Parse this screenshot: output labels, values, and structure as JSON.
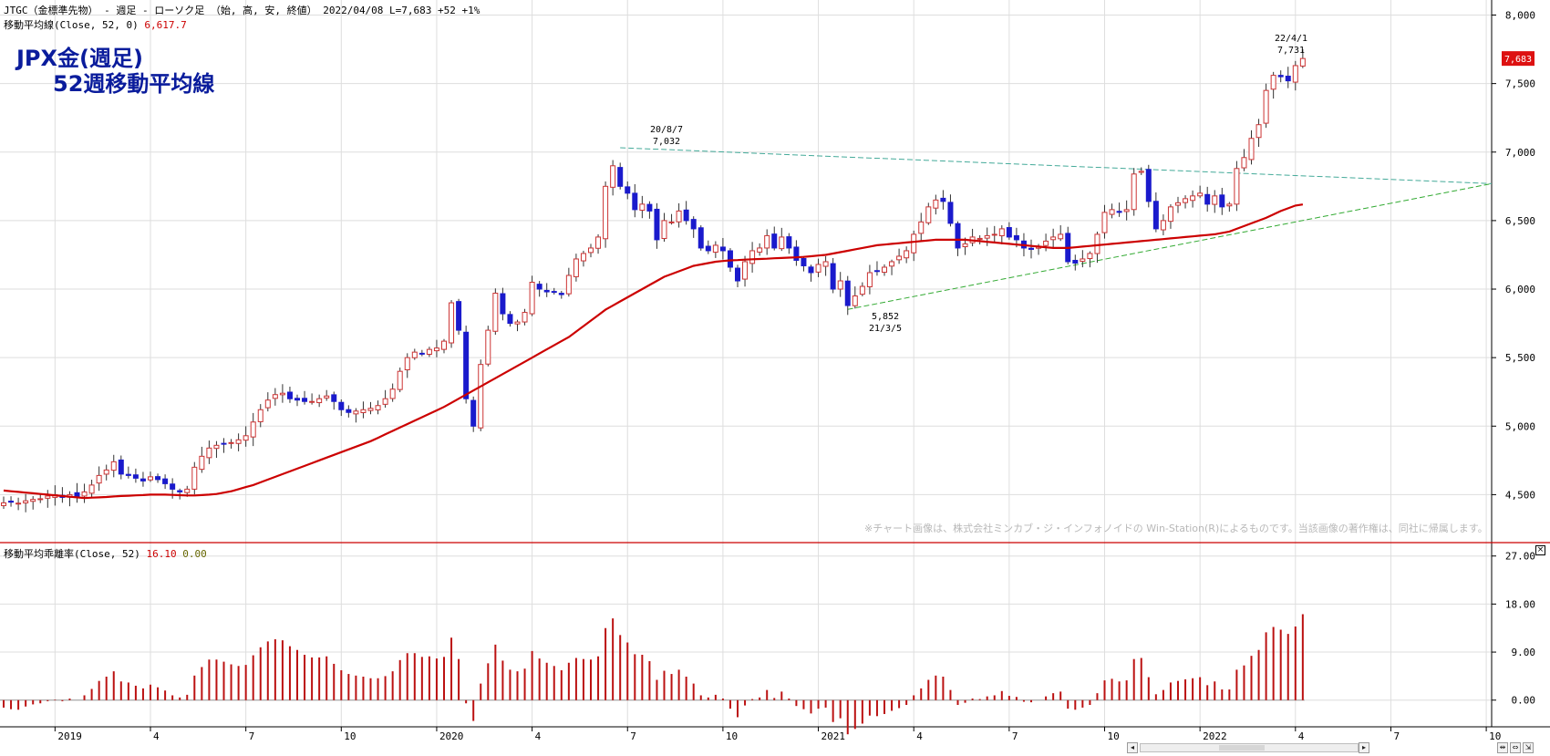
{
  "header": {
    "line1": "JTGC（金標準先物） - 週足 - ローソク足 （始, 高, 安, 終値） 2022/04/08 L=7,683 +52 +1%",
    "line2_prefix": "移動平均線(Close, 52, 0)",
    "line2_value": "6,617.7",
    "sub_prefix": "移動平均乖離率(Close, 52)",
    "sub_value1": "16.10",
    "sub_value2": "0.00"
  },
  "title": {
    "line1": "JPX金(週足)",
    "line2": "52週移動平均線"
  },
  "copyright": "※チャート画像は、株式会社ミンカブ・ジ・インフォノイドの Win-Station(R)によるものです。当該画像の著作権は、同社に帰属します。",
  "annotations": {
    "high1_date": "20/8/7",
    "high1_value": "7,032",
    "low_value": "5,852",
    "low_date": "21/3/5",
    "high2_date": "22/4/1",
    "high2_value": "7,731"
  },
  "colors": {
    "up_candle": "#cc3333",
    "down_candle": "#1a1acc",
    "ma_line": "#cc0000",
    "deviation_bar": "#bb1111",
    "grid": "#dedede",
    "trend_upper": "#44aa99",
    "trend_lower": "#33aa33",
    "last_price_tag": "#dd1111"
  },
  "chart_data": [
    {
      "type": "candlestick",
      "title": "JPX金(週足) 52週移動平均線",
      "y_ticks": [
        "8,000",
        "7,500",
        "7,000",
        "6,500",
        "6,000",
        "5,500",
        "5,000",
        "4,500"
      ],
      "ylim": [
        4150,
        8030
      ],
      "x_ticks": [
        "2019",
        "4",
        "7",
        "10",
        "2020",
        "4",
        "7",
        "10",
        "2021",
        "4",
        "7",
        "10",
        "2022",
        "4",
        "7",
        "10"
      ],
      "x_tick_weeks": [
        7,
        20,
        33,
        46,
        59,
        72,
        85,
        98,
        111,
        124,
        137,
        150,
        163,
        176,
        189,
        202
      ],
      "total_weeks": 203,
      "last_price_label": "7,683",
      "close": [
        4440,
        4445,
        4438,
        4455,
        4465,
        4470,
        4490,
        4500,
        4480,
        4500,
        4480,
        4520,
        4570,
        4640,
        4680,
        4740,
        4650,
        4640,
        4620,
        4600,
        4630,
        4610,
        4580,
        4540,
        4520,
        4540,
        4700,
        4780,
        4840,
        4860,
        4870,
        4880,
        4900,
        4930,
        5030,
        5120,
        5190,
        5230,
        5240,
        5200,
        5190,
        5180,
        5180,
        5200,
        5220,
        5180,
        5120,
        5100,
        5110,
        5120,
        5130,
        5150,
        5200,
        5270,
        5400,
        5500,
        5540,
        5530,
        5560,
        5570,
        5620,
        5900,
        5700,
        5200,
        5000,
        5450,
        5700,
        5970,
        5820,
        5750,
        5760,
        5830,
        6050,
        6000,
        5980,
        5980,
        5960,
        6100,
        6220,
        6260,
        6300,
        6380,
        6750,
        6900,
        6750,
        6700,
        6580,
        6620,
        6570,
        6360,
        6500,
        6490,
        6570,
        6500,
        6440,
        6300,
        6280,
        6320,
        6280,
        6160,
        6060,
        6200,
        6280,
        6300,
        6390,
        6300,
        6380,
        6300,
        6210,
        6170,
        6120,
        6180,
        6200,
        6000,
        6060,
        5880,
        5950,
        6020,
        6120,
        6130,
        6160,
        6200,
        6240,
        6280,
        6400,
        6490,
        6600,
        6650,
        6640,
        6480,
        6300,
        6330,
        6380,
        6370,
        6390,
        6400,
        6440,
        6380,
        6360,
        6300,
        6290,
        6310,
        6350,
        6380,
        6400,
        6200,
        6190,
        6220,
        6260,
        6400,
        6560,
        6580,
        6560,
        6580,
        6840,
        6860,
        6640,
        6440,
        6500,
        6600,
        6630,
        6660,
        6680,
        6700,
        6620,
        6680,
        6600,
        6620,
        6880,
        6960,
        7100,
        7200,
        7450,
        7560,
        7550,
        7520,
        7631,
        7683
      ],
      "moving_average": [
        4530,
        4525,
        4520,
        4515,
        4510,
        4505,
        4500,
        4495,
        4490,
        4485,
        4480,
        4475,
        4478,
        4480,
        4483,
        4487,
        4490,
        4492,
        4495,
        4497,
        4500,
        4500,
        4500,
        4498,
        4496,
        4494,
        4494,
        4497,
        4500,
        4505,
        4515,
        4525,
        4540,
        4555,
        4570,
        4590,
        4610,
        4630,
        4650,
        4670,
        4690,
        4710,
        4730,
        4750,
        4770,
        4790,
        4810,
        4830,
        4850,
        4870,
        4890,
        4915,
        4940,
        4965,
        4990,
        5015,
        5040,
        5065,
        5090,
        5115,
        5140,
        5170,
        5200,
        5230,
        5260,
        5290,
        5320,
        5350,
        5380,
        5410,
        5440,
        5470,
        5500,
        5530,
        5560,
        5590,
        5620,
        5650,
        5690,
        5730,
        5770,
        5810,
        5850,
        5880,
        5910,
        5940,
        5970,
        6000,
        6030,
        6060,
        6090,
        6110,
        6130,
        6150,
        6170,
        6180,
        6190,
        6200,
        6205,
        6210,
        6212,
        6215,
        6218,
        6220,
        6222,
        6225,
        6227,
        6230,
        6232,
        6235,
        6240,
        6245,
        6250,
        6260,
        6270,
        6280,
        6290,
        6300,
        6310,
        6320,
        6325,
        6330,
        6335,
        6340,
        6345,
        6350,
        6355,
        6360,
        6360,
        6360,
        6360,
        6360,
        6355,
        6350,
        6345,
        6340,
        6335,
        6330,
        6325,
        6320,
        6315,
        6310,
        6305,
        6300,
        6300,
        6300,
        6305,
        6310,
        6315,
        6320,
        6325,
        6330,
        6335,
        6340,
        6345,
        6350,
        6355,
        6360,
        6365,
        6370,
        6375,
        6380,
        6385,
        6390,
        6395,
        6400,
        6410,
        6420,
        6440,
        6460,
        6480,
        6500,
        6520,
        6545,
        6570,
        6590,
        6610,
        6618
      ]
    },
    {
      "type": "bar",
      "title": "移動平均乖離率(Close, 52)",
      "y_ticks": [
        "27.00",
        "18.00",
        "9.00",
        "0.00"
      ],
      "ylim": [
        -5,
        29
      ],
      "values": [
        -1.4,
        -1.7,
        -1.8,
        -1.2,
        -0.8,
        -0.6,
        -0.2,
        0.1,
        -0.2,
        0.3,
        0,
        0.9,
        2.1,
        3.6,
        4.4,
        5.4,
        3.5,
        3.3,
        2.7,
        2.2,
        2.9,
        2.4,
        1.8,
        0.9,
        0.5,
        1,
        4.6,
        6.2,
        7.6,
        7.6,
        7.2,
        6.7,
        6.4,
        6.6,
        8.4,
        9.9,
        11,
        11.4,
        11.2,
        10.1,
        9.4,
        8.5,
        8,
        8,
        8.2,
        6.8,
        5.6,
        4.9,
        4.6,
        4.4,
        4.1,
        4.1,
        4.5,
        5.4,
        7.5,
        8.8,
        8.8,
        8.1,
        8.2,
        7.8,
        8.1,
        11.7,
        7.7,
        -0.6,
        -3.9,
        3.1,
        6.9,
        10.4,
        7.4,
        5.7,
        5.4,
        5.9,
        9.2,
        7.8,
        7,
        6.4,
        5.6,
        7,
        7.9,
        7.7,
        7.6,
        8.2,
        13.5,
        15.3,
        12.2,
        10.8,
        8.6,
        8.5,
        7.3,
        3.8,
        5.5,
        4.9,
        5.7,
        4.4,
        3.1,
        0.9,
        0.5,
        1,
        0.3,
        -1.6,
        -3.2,
        -1,
        0.2,
        0.5,
        1.9,
        0.4,
        1.6,
        0.3,
        -1.1,
        -1.7,
        -2.5,
        -1.6,
        -1.4,
        -4.1,
        -3.4,
        -6.4,
        -5.4,
        -4.4,
        -2.9,
        -3,
        -2.6,
        -2,
        -1.5,
        -0.9,
        0.9,
        2.2,
        3.8,
        4.6,
        4.4,
        1.9,
        -0.9,
        -0.5,
        0.3,
        0.2,
        0.7,
        0.9,
        1.7,
        0.8,
        0.6,
        -0.3,
        -0.4,
        0,
        0.7,
        1.3,
        1.6,
        -1.6,
        -1.8,
        -1.4,
        -0.9,
        1.3,
        3.7,
        4,
        3.5,
        3.7,
        7.7,
        7.9,
        4.3,
        1.1,
        1.9,
        3.3,
        3.6,
        3.9,
        4.1,
        4.3,
        2.8,
        3.5,
        2,
        2,
        5.7,
        6.5,
        8.3,
        9.4,
        12.7,
        13.7,
        13.2,
        12.4,
        13.8,
        16.1
      ]
    }
  ]
}
